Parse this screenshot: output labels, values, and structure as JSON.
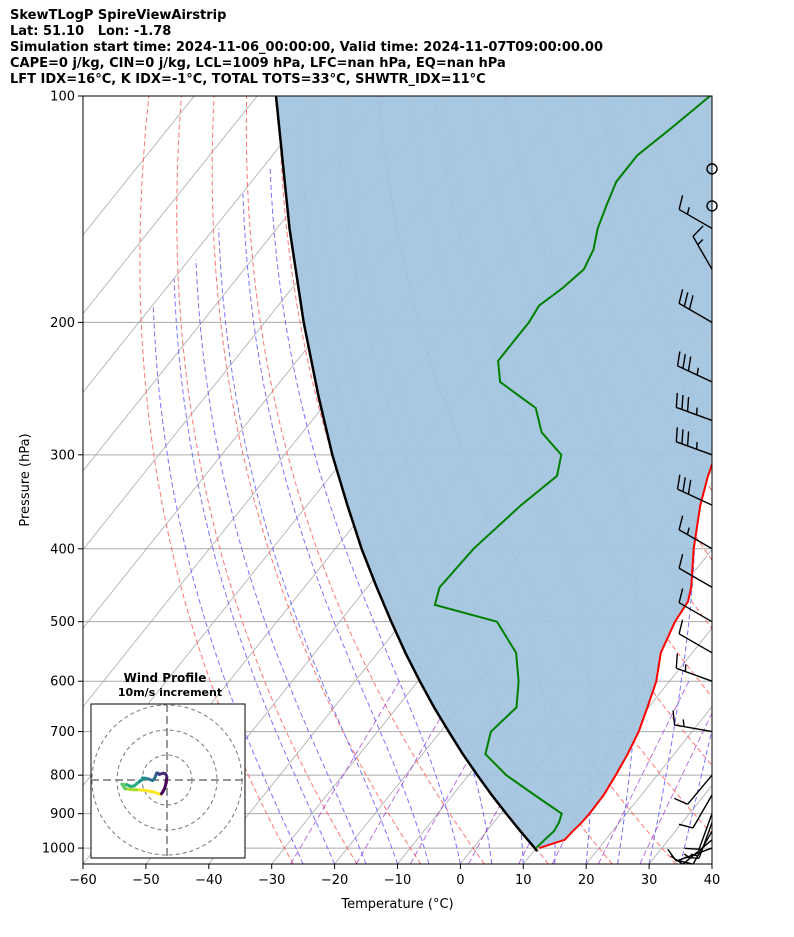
{
  "header": {
    "lines": [
      "SkewTLogP SpireViewAirstrip",
      "Lat: 51.10   Lon: -1.78",
      "Simulation start time: 2024-11-06_00:00:00, Valid time: 2024-11-07T09:00:00.00",
      "CAPE=0 j/kg, CIN=0 j/kg, LCL=1009 hPa, LFC=nan hPa, EQ=nan hPa",
      "LFT IDX=16°C, K IDX=-1°C, TOTAL TOTS=33°C, SHWTR_IDX=11°C"
    ]
  },
  "chart_data": [
    {
      "type": "line",
      "subtype": "skew-t log-p diagram",
      "xlabel": "Temperature (°C)",
      "ylabel": "Pressure (hPa)",
      "xlim": [
        -60,
        40
      ],
      "ylim": [
        1050,
        100
      ],
      "y_scale": "log",
      "x_ticks": [
        "−60",
        "−50",
        "−40",
        "−30",
        "−20",
        "−10",
        "0",
        "10",
        "20",
        "30",
        "40"
      ],
      "y_ticks": [
        "100",
        "200",
        "300",
        "400",
        "500",
        "600",
        "700",
        "800",
        "900",
        "1000"
      ],
      "grid": true,
      "colors": {
        "temperature": "#ff0000",
        "dewpoint": "#008000",
        "parcel": "#000000",
        "cape_fill": "#a3c4de",
        "isotherm": "#aaaaaa",
        "dry_adiabat": "#ff6666",
        "moist_adiabat": "#6666ff",
        "mixing_ratio": "#9933cc"
      },
      "series": [
        {
          "key": "temperature",
          "points": [
            [
              1000,
              10.5
            ],
            [
              975,
              13.5
            ],
            [
              950,
              13.7
            ],
            [
              925,
              14.0
            ],
            [
              900,
              14.1
            ],
            [
              850,
              14.0
            ],
            [
              800,
              13.4
            ],
            [
              750,
              12.6
            ],
            [
              700,
              11.5
            ],
            [
              650,
              9.8
            ],
            [
              600,
              7.9
            ],
            [
              550,
              5.0
            ],
            [
              500,
              3.3
            ],
            [
              470,
              2.8
            ],
            [
              450,
              1.5
            ],
            [
              400,
              -3.0
            ],
            [
              350,
              -7.5
            ],
            [
              320,
              -10.0
            ],
            [
              300,
              -11.5
            ],
            [
              280,
              -13.4
            ],
            [
              260,
              -14.9
            ],
            [
              240,
              -16.3
            ],
            [
              225,
              -18.0
            ],
            [
              210,
              -20.0
            ],
            [
              200,
              -20.5
            ],
            [
              190,
              -21.0
            ],
            [
              170,
              -22.5
            ],
            [
              160,
              -23.5
            ],
            [
              150,
              -24.5
            ],
            [
              140,
              -25.5
            ],
            [
              130,
              -27.2
            ],
            [
              120,
              -29.5
            ],
            [
              110,
              -31.5
            ],
            [
              100,
              -35.0
            ]
          ]
        },
        {
          "key": "dewpoint",
          "points": [
            [
              1000,
              10.0
            ],
            [
              975,
              10.3
            ],
            [
              950,
              10.7
            ],
            [
              925,
              10.4
            ],
            [
              900,
              9.7
            ],
            [
              850,
              3.0
            ],
            [
              800,
              -4.0
            ],
            [
              750,
              -10.0
            ],
            [
              700,
              -12.0
            ],
            [
              650,
              -11.0
            ],
            [
              600,
              -14.0
            ],
            [
              550,
              -18.0
            ],
            [
              500,
              -25.0
            ],
            [
              475,
              -37.0
            ],
            [
              450,
              -38.5
            ],
            [
              400,
              -38.0
            ],
            [
              350,
              -36.0
            ],
            [
              320,
              -34.0
            ],
            [
              300,
              -36.0
            ],
            [
              280,
              -42.0
            ],
            [
              260,
              -46.0
            ],
            [
              240,
              -55.0
            ],
            [
              225,
              -58.0
            ],
            [
              210,
              -58.0
            ],
            [
              200,
              -58.0
            ],
            [
              190,
              -58.5
            ],
            [
              180,
              -57.0
            ],
            [
              170,
              -56.0
            ],
            [
              160,
              -57.0
            ],
            [
              150,
              -59.0
            ],
            [
              140,
              -60.5
            ],
            [
              130,
              -62.0
            ],
            [
              120,
              -62.0
            ],
            [
              110,
              -60.0
            ],
            [
              100,
              -58.0
            ]
          ]
        },
        {
          "key": "parcel",
          "points": [
            [
              1010,
              10.6
            ],
            [
              1000,
              9.8
            ],
            [
              950,
              5.4
            ],
            [
              900,
              0.9
            ],
            [
              850,
              -3.8
            ],
            [
              800,
              -8.6
            ],
            [
              750,
              -13.6
            ],
            [
              700,
              -18.7
            ],
            [
              650,
              -24.1
            ],
            [
              600,
              -29.7
            ],
            [
              550,
              -35.6
            ],
            [
              500,
              -41.8
            ],
            [
              450,
              -48.5
            ],
            [
              400,
              -55.8
            ],
            [
              350,
              -63.6
            ],
            [
              300,
              -72.4
            ],
            [
              250,
              -82.2
            ],
            [
              200,
              -93.8
            ],
            [
              150,
              -108.0
            ],
            [
              100,
              -127.0
            ]
          ]
        }
      ],
      "wind_barbs": [
        {
          "pressure": 1000,
          "speed_kt": 10,
          "direction": 250
        },
        {
          "pressure": 975,
          "speed_kt": 15,
          "direction": 230
        },
        {
          "pressure": 950,
          "speed_kt": 15,
          "direction": 210
        },
        {
          "pressure": 925,
          "speed_kt": 10,
          "direction": 200
        },
        {
          "pressure": 900,
          "speed_kt": 10,
          "direction": 200
        },
        {
          "pressure": 850,
          "speed_kt": 10,
          "direction": 210
        },
        {
          "pressure": 800,
          "speed_kt": 10,
          "direction": 220
        },
        {
          "pressure": 700,
          "speed_kt": 15,
          "direction": 280
        },
        {
          "pressure": 600,
          "speed_kt": 15,
          "direction": 290
        },
        {
          "pressure": 550,
          "speed_kt": 10,
          "direction": 300
        },
        {
          "pressure": 500,
          "speed_kt": 10,
          "direction": 300
        },
        {
          "pressure": 450,
          "speed_kt": 10,
          "direction": 300
        },
        {
          "pressure": 400,
          "speed_kt": 15,
          "direction": 300
        },
        {
          "pressure": 350,
          "speed_kt": 30,
          "direction": 295
        },
        {
          "pressure": 300,
          "speed_kt": 35,
          "direction": 290
        },
        {
          "pressure": 270,
          "speed_kt": 35,
          "direction": 290
        },
        {
          "pressure": 240,
          "speed_kt": 35,
          "direction": 295
        },
        {
          "pressure": 200,
          "speed_kt": 30,
          "direction": 300
        },
        {
          "pressure": 170,
          "speed_kt": 15,
          "direction": 330
        },
        {
          "pressure": 150,
          "speed_kt": 15,
          "direction": 300
        },
        {
          "pressure": 140,
          "speed_kt": 0,
          "direction": 0
        },
        {
          "pressure": 125,
          "speed_kt": 0,
          "direction": 0
        }
      ]
    },
    {
      "type": "scatter",
      "subtype": "hodograph",
      "title": "Wind Profile",
      "subtitle": "10m/s increment",
      "ring_increment": 10,
      "colormap": "viridis",
      "points": [
        [
          -2.5,
          -5.8
        ],
        [
          -5.0,
          -4.9
        ],
        [
          -8.0,
          -4.3
        ],
        [
          -10.5,
          -4.0
        ],
        [
          -12.0,
          -3.9
        ],
        [
          -13.5,
          -3.9
        ],
        [
          -14.6,
          -3.8
        ],
        [
          -15.8,
          -3.6
        ],
        [
          -16.7,
          -3.5
        ],
        [
          -17.2,
          -2.8
        ],
        [
          -18.0,
          -1.7
        ],
        [
          -17.5,
          -1.8
        ],
        [
          -16.0,
          -1.9
        ],
        [
          -14.5,
          -2.6
        ],
        [
          -13.0,
          -2.3
        ],
        [
          -12.0,
          -1.4
        ],
        [
          -11.0,
          -0.6
        ],
        [
          -10.0,
          0.1
        ],
        [
          -9.8,
          0.8
        ],
        [
          -8.8,
          0.7
        ],
        [
          -7.5,
          0.4
        ],
        [
          -5.8,
          -0.2
        ],
        [
          -5.0,
          0.5
        ],
        [
          -4.5,
          1.8
        ],
        [
          -4.2,
          2.6
        ],
        [
          -4.0,
          2.8
        ],
        [
          -3.6,
          2.7
        ],
        [
          -3.1,
          2.2
        ],
        [
          -2.6,
          2.4
        ],
        [
          -1.6,
          2.7
        ],
        [
          -0.6,
          2.5
        ],
        [
          -0.1,
          1.5
        ],
        [
          -0.1,
          0.4
        ],
        [
          -0.4,
          -1.2
        ],
        [
          -0.9,
          -3.3
        ],
        [
          -1.6,
          -4.6
        ],
        [
          -2.2,
          -5.5
        ]
      ]
    }
  ]
}
